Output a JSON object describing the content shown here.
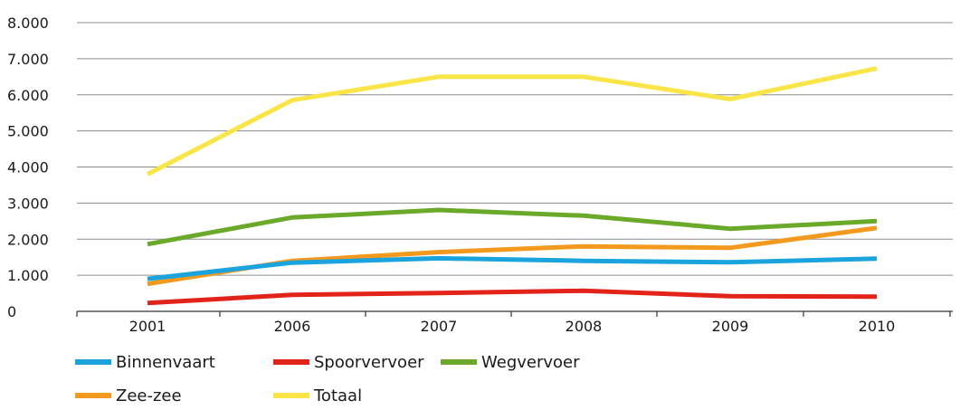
{
  "chart_data": {
    "type": "line",
    "categories": [
      "2001",
      "2006",
      "2007",
      "2008",
      "2009",
      "2010"
    ],
    "ylim": [
      0,
      8000
    ],
    "yticks": [
      0,
      1000,
      2000,
      3000,
      4000,
      5000,
      6000,
      7000,
      8000
    ],
    "ytick_labels": [
      "0",
      "1.000",
      "2.000",
      "3.000",
      "4.000",
      "5.000",
      "6.000",
      "7.000",
      "8.000"
    ],
    "grid": "horizontal",
    "legend_position": "bottom",
    "series": [
      {
        "name": "Binnenvaart",
        "color": "#1aa3dd",
        "values": [
          900,
          1350,
          1470,
          1400,
          1360,
          1460
        ]
      },
      {
        "name": "Spoorvervoer",
        "color": "#e2231a",
        "values": [
          230,
          460,
          510,
          570,
          420,
          410
        ]
      },
      {
        "name": "Wegvervoer",
        "color": "#6aa92a",
        "values": [
          1860,
          2600,
          2810,
          2650,
          2290,
          2500
        ]
      },
      {
        "name": "Zee-zee",
        "color": "#f39a1e",
        "values": [
          760,
          1400,
          1640,
          1800,
          1760,
          2310
        ]
      },
      {
        "name": "Totaal",
        "color": "#f9e547",
        "values": [
          3800,
          5850,
          6500,
          6500,
          5880,
          6730
        ]
      }
    ]
  }
}
